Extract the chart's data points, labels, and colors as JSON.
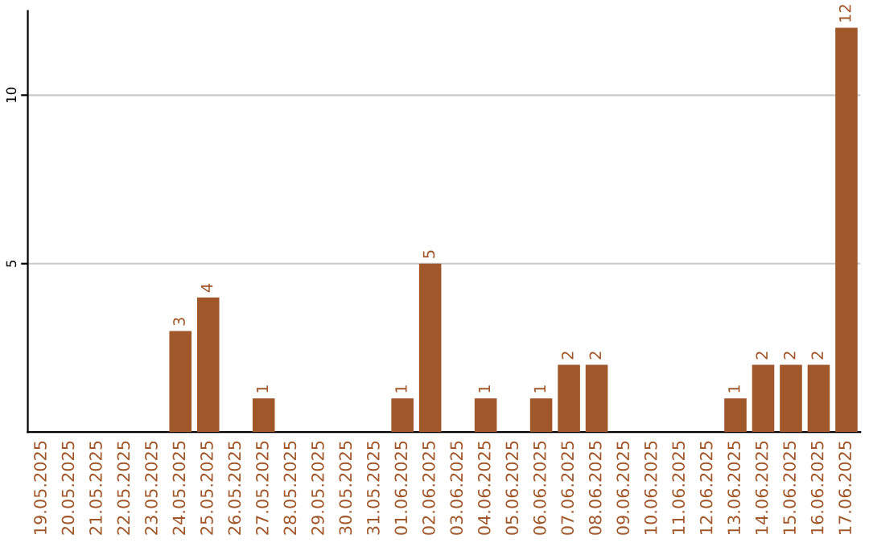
{
  "chart_data": {
    "type": "bar",
    "categories": [
      "19.05.2025",
      "20.05.2025",
      "21.05.2025",
      "22.05.2025",
      "23.05.2025",
      "24.05.2025",
      "25.05.2025",
      "26.05.2025",
      "27.05.2025",
      "28.05.2025",
      "29.05.2025",
      "30.05.2025",
      "31.05.2025",
      "01.06.2025",
      "02.06.2025",
      "03.06.2025",
      "04.06.2025",
      "05.06.2025",
      "06.06.2025",
      "07.06.2025",
      "08.06.2025",
      "09.06.2025",
      "10.06.2025",
      "11.06.2025",
      "12.06.2025",
      "13.06.2025",
      "14.06.2025",
      "15.06.2025",
      "16.06.2025",
      "17.06.2025"
    ],
    "values": [
      0,
      0,
      0,
      0,
      0,
      3,
      4,
      0,
      1,
      0,
      0,
      0,
      0,
      1,
      5,
      0,
      1,
      0,
      1,
      2,
      2,
      0,
      0,
      0,
      0,
      1,
      2,
      2,
      2,
      12
    ],
    "value_labels": [
      null,
      null,
      null,
      null,
      null,
      "3",
      "4",
      null,
      "1",
      null,
      null,
      null,
      null,
      "1",
      "5",
      null,
      "1",
      null,
      "1",
      "2",
      "2",
      null,
      null,
      null,
      null,
      "1",
      "2",
      "2",
      "2",
      "12"
    ],
    "color": "#a0582a",
    "ylim": [
      0,
      12.5
    ],
    "yticks": [
      5,
      10
    ],
    "grid": "y"
  }
}
